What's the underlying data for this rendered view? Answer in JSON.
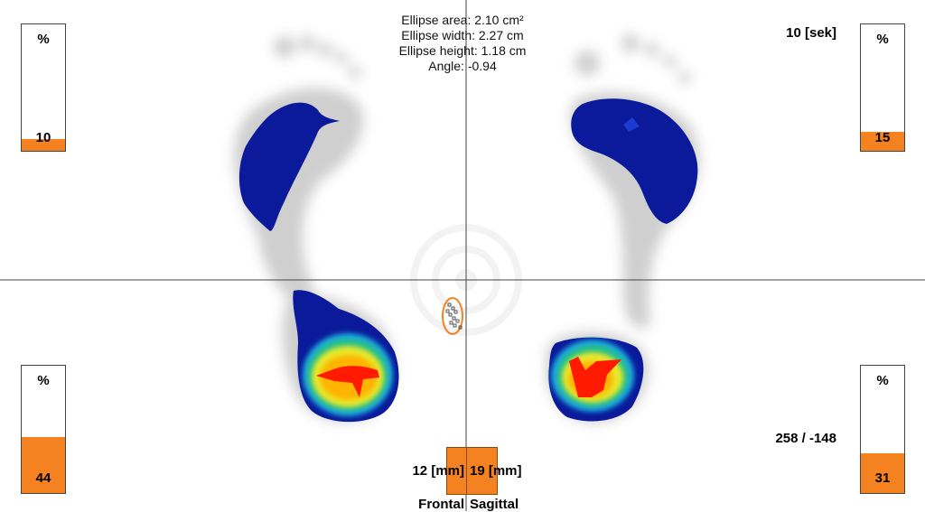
{
  "ellipse_info": {
    "area": "Ellipse area: 2.10 cm²",
    "width": "Ellipse width: 2.27 cm",
    "height": "Ellipse height: 1.18 cm",
    "angle": "Angle: -0.94"
  },
  "gauges": {
    "unit": "%",
    "top_left": {
      "value": "10"
    },
    "top_right": {
      "value": "15"
    },
    "bottom_left": {
      "value": "44"
    },
    "bottom_right": {
      "value": "31"
    }
  },
  "time_label": "10 [sek]",
  "coord_label": "258 / -148",
  "frontal": {
    "value": "12 [mm]",
    "label": "Frontal"
  },
  "sagittal": {
    "value": "19 [mm]",
    "label": "Sagittal"
  },
  "colors": {
    "accent_orange": "#f58220",
    "pressure_low": "#0a1a9a",
    "pressure_high": "#ff0000",
    "footprint_shadow": "#cfcfcf"
  }
}
